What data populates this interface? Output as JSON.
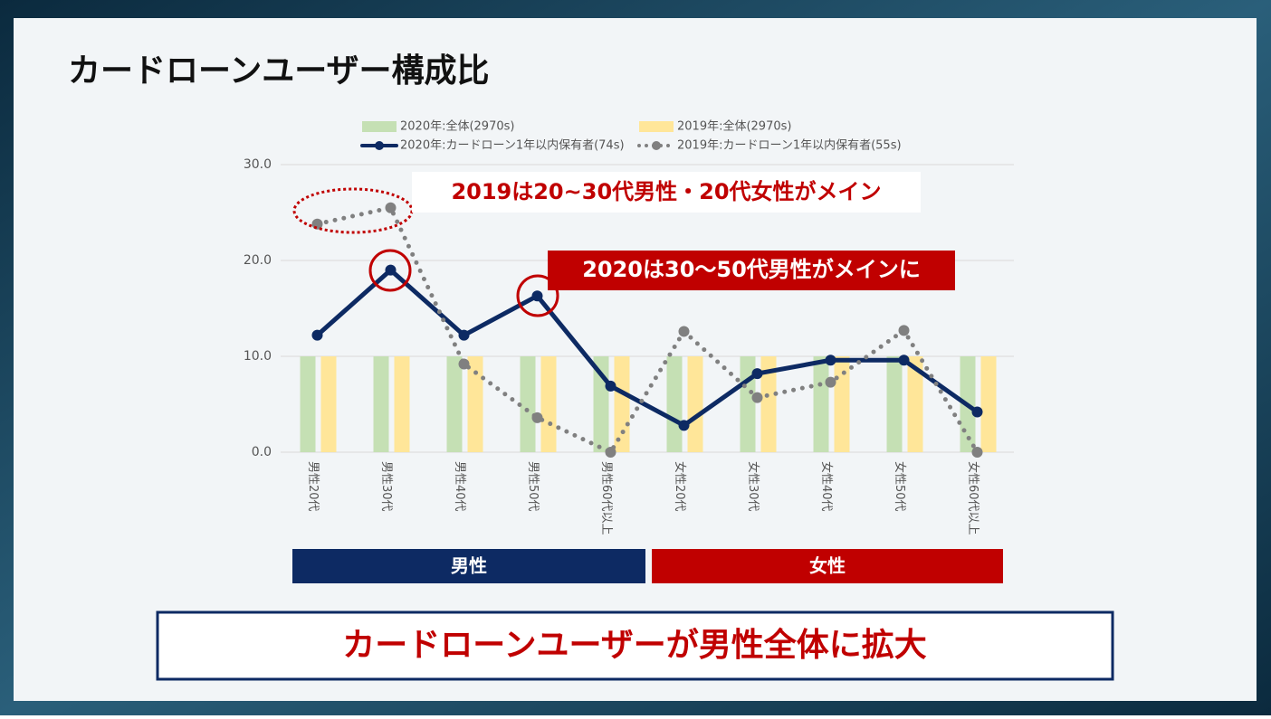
{
  "chart_data": {
    "type": "bar",
    "title": "カードローンユーザー構成比",
    "categories": [
      "男性20代",
      "男性30代",
      "男性40代",
      "男性50代",
      "男性60代以上",
      "女性20代",
      "女性30代",
      "女性40代",
      "女性50代",
      "女性60代以上"
    ],
    "series": [
      {
        "name": "2020年:全体(2970s)",
        "type": "bar",
        "color": "#c5e0b4",
        "values": [
          10.0,
          10.0,
          10.0,
          10.0,
          10.0,
          10.0,
          10.0,
          10.0,
          10.0,
          10.0
        ]
      },
      {
        "name": "2019年:全体(2970s)",
        "type": "bar",
        "color": "#ffe699",
        "values": [
          10.0,
          10.0,
          10.0,
          10.0,
          10.0,
          10.0,
          10.0,
          10.0,
          10.0,
          10.0
        ]
      },
      {
        "name": "2020年:カードローン1年以内保有者(74s)",
        "type": "line",
        "style": "solid",
        "color": "#0d2a63",
        "values": [
          12.2,
          19.0,
          12.2,
          16.3,
          6.9,
          2.8,
          8.2,
          9.6,
          9.6,
          4.2
        ]
      },
      {
        "name": "2019年:カードローン1年以内保有者(55s)",
        "type": "line",
        "style": "dotted",
        "color": "#808080",
        "values": [
          23.8,
          25.5,
          9.2,
          3.6,
          0.0,
          12.6,
          5.7,
          7.3,
          12.7,
          0.0
        ]
      }
    ],
    "ylim": [
      0,
      30
    ],
    "yticks": [
      {
        "value": 0,
        "label": "0.0"
      },
      {
        "value": 10,
        "label": "10.0"
      },
      {
        "value": 20,
        "label": "20.0"
      },
      {
        "value": 30,
        "label": "30.0"
      }
    ],
    "grid": true,
    "annotations": [
      "2019は20~30代男性・20代女性がメイン",
      "2020は30～50代男性がメインに"
    ],
    "groups": [
      "男性",
      "女性"
    ],
    "headline": "カードローンユーザーが男性全体に拡大"
  }
}
